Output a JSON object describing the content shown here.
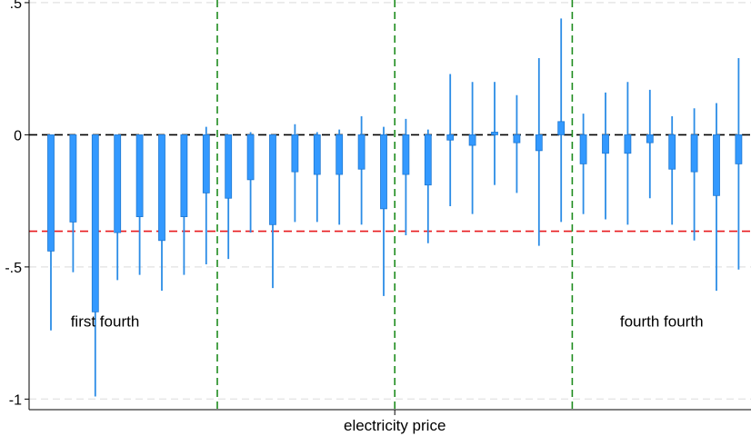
{
  "chart_data": {
    "type": "bar",
    "title": "",
    "xlabel": "electricity price",
    "ylabel": "",
    "ylim": [
      -1.04,
      0.51
    ],
    "y_ticks": [
      {
        "value": 0.5,
        "label": ".5"
      },
      {
        "value": 0,
        "label": "0"
      },
      {
        "value": -0.5,
        "label": "-.5"
      },
      {
        "value": -1,
        "label": "-1"
      }
    ],
    "grid": "horizontal dashed light gray",
    "n_bars": 32,
    "bars": [
      {
        "value": -0.44,
        "ci_low": -0.74,
        "ci_high": -0.14
      },
      {
        "value": -0.33,
        "ci_low": -0.52,
        "ci_high": -0.14
      },
      {
        "value": -0.67,
        "ci_low": -0.99,
        "ci_high": -0.35
      },
      {
        "value": -0.37,
        "ci_low": -0.55,
        "ci_high": -0.19
      },
      {
        "value": -0.31,
        "ci_low": -0.53,
        "ci_high": -0.09
      },
      {
        "value": -0.4,
        "ci_low": -0.59,
        "ci_high": -0.21
      },
      {
        "value": -0.31,
        "ci_low": -0.53,
        "ci_high": -0.1
      },
      {
        "value": -0.22,
        "ci_low": -0.49,
        "ci_high": 0.03
      },
      {
        "value": -0.24,
        "ci_low": -0.47,
        "ci_high": -0.01
      },
      {
        "value": -0.17,
        "ci_low": -0.37,
        "ci_high": 0.01
      },
      {
        "value": -0.34,
        "ci_low": -0.58,
        "ci_high": -0.1
      },
      {
        "value": -0.14,
        "ci_low": -0.33,
        "ci_high": 0.04
      },
      {
        "value": -0.15,
        "ci_low": -0.33,
        "ci_high": 0.01
      },
      {
        "value": -0.15,
        "ci_low": -0.34,
        "ci_high": 0.02
      },
      {
        "value": -0.13,
        "ci_low": -0.34,
        "ci_high": 0.07
      },
      {
        "value": -0.28,
        "ci_low": -0.61,
        "ci_high": 0.03
      },
      {
        "value": -0.15,
        "ci_low": -0.38,
        "ci_high": 0.06
      },
      {
        "value": -0.19,
        "ci_low": -0.41,
        "ci_high": 0.02
      },
      {
        "value": -0.02,
        "ci_low": -0.27,
        "ci_high": 0.23
      },
      {
        "value": -0.04,
        "ci_low": -0.3,
        "ci_high": 0.2
      },
      {
        "value": 0.01,
        "ci_low": -0.19,
        "ci_high": 0.2
      },
      {
        "value": -0.03,
        "ci_low": -0.22,
        "ci_high": 0.15
      },
      {
        "value": -0.06,
        "ci_low": -0.42,
        "ci_high": 0.29
      },
      {
        "value": 0.05,
        "ci_low": -0.33,
        "ci_high": 0.44
      },
      {
        "value": -0.11,
        "ci_low": -0.3,
        "ci_high": 0.08
      },
      {
        "value": -0.07,
        "ci_low": -0.32,
        "ci_high": 0.16
      },
      {
        "value": -0.07,
        "ci_low": -0.34,
        "ci_high": 0.2
      },
      {
        "value": -0.03,
        "ci_low": -0.24,
        "ci_high": 0.17
      },
      {
        "value": -0.13,
        "ci_low": -0.34,
        "ci_high": 0.07
      },
      {
        "value": -0.14,
        "ci_low": -0.4,
        "ci_high": 0.1
      },
      {
        "value": -0.23,
        "ci_low": -0.59,
        "ci_high": 0.12
      },
      {
        "value": -0.11,
        "ci_low": -0.51,
        "ci_high": 0.29
      }
    ],
    "reference_lines": [
      {
        "axis": "y",
        "value": 0,
        "color": "#000000",
        "style": "dashed"
      },
      {
        "axis": "y",
        "value": -0.365,
        "color": "#e8191c",
        "style": "dashed"
      }
    ],
    "quarter_dividers_after_bar": [
      8,
      16,
      24
    ],
    "divider_color": "#1e8c1e",
    "annotations": [
      {
        "text": "first fourth",
        "quarter": 1,
        "y": -0.705
      },
      {
        "text": "fourth fourth",
        "quarter": 4,
        "y": -0.705
      }
    ],
    "colors": {
      "bar_fill": "#3399ff",
      "bar_stroke": "#1f78d1",
      "ci_line": "#2b8ce6",
      "grid": "#e6e6e6"
    }
  }
}
